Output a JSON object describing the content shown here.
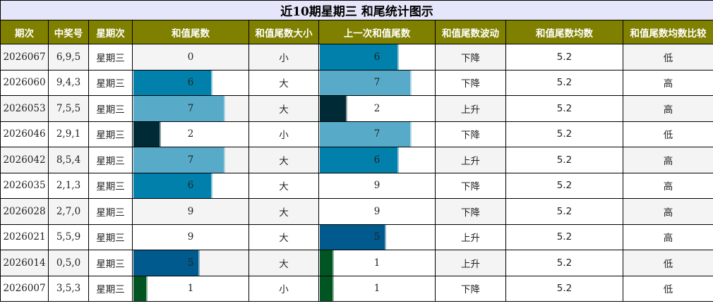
{
  "title": "近10期星期三 和尾统计图示",
  "colors": {
    "title_bg": "#e6e6fa",
    "header_bg": "#808000",
    "header_text": "#ffffff",
    "zebra_bg": "#f4f4f4",
    "bar_by_value": {
      "1": "#005522",
      "2": "#002b36",
      "5": "#005a8e",
      "6": "#0080ab",
      "7": "#58abc8"
    }
  },
  "headers": [
    "期次",
    "中奖号",
    "星期次",
    "和值尾数",
    "和值尾数大小",
    "上一次和值尾数",
    "和值尾数波动",
    "和值尾数均数",
    "和值尾数均数比较"
  ],
  "rows": [
    {
      "period": "2026067",
      "numbers": "6,9,5",
      "weekday": "星期三",
      "tail": "0",
      "size": "小",
      "prev_tail": "6",
      "trend": "下降",
      "avg": "5.2",
      "compare": "低"
    },
    {
      "period": "2026060",
      "numbers": "9,4,3",
      "weekday": "星期三",
      "tail": "6",
      "size": "大",
      "prev_tail": "7",
      "trend": "下降",
      "avg": "5.2",
      "compare": "高"
    },
    {
      "period": "2026053",
      "numbers": "7,5,5",
      "weekday": "星期三",
      "tail": "7",
      "size": "大",
      "prev_tail": "2",
      "trend": "上升",
      "avg": "5.2",
      "compare": "高"
    },
    {
      "period": "2026046",
      "numbers": "2,9,1",
      "weekday": "星期三",
      "tail": "2",
      "size": "小",
      "prev_tail": "7",
      "trend": "下降",
      "avg": "5.2",
      "compare": "低"
    },
    {
      "period": "2026042",
      "numbers": "8,5,4",
      "weekday": "星期三",
      "tail": "7",
      "size": "大",
      "prev_tail": "6",
      "trend": "上升",
      "avg": "5.2",
      "compare": "高"
    },
    {
      "period": "2026035",
      "numbers": "2,1,3",
      "weekday": "星期三",
      "tail": "6",
      "size": "大",
      "prev_tail": "9",
      "trend": "下降",
      "avg": "5.2",
      "compare": "高"
    },
    {
      "period": "2026028",
      "numbers": "2,7,0",
      "weekday": "星期三",
      "tail": "9",
      "size": "大",
      "prev_tail": "9",
      "trend": "下降",
      "avg": "5.2",
      "compare": "高"
    },
    {
      "period": "2026021",
      "numbers": "5,5,9",
      "weekday": "星期三",
      "tail": "9",
      "size": "大",
      "prev_tail": "5",
      "trend": "上升",
      "avg": "5.2",
      "compare": "高"
    },
    {
      "period": "2026014",
      "numbers": "0,5,0",
      "weekday": "星期三",
      "tail": "5",
      "size": "大",
      "prev_tail": "1",
      "trend": "上升",
      "avg": "5.2",
      "compare": "低"
    },
    {
      "period": "2026007",
      "numbers": "3,5,3",
      "weekday": "星期三",
      "tail": "1",
      "size": "小",
      "prev_tail": "1",
      "trend": "下降",
      "avg": "5.2",
      "compare": "低"
    }
  ]
}
